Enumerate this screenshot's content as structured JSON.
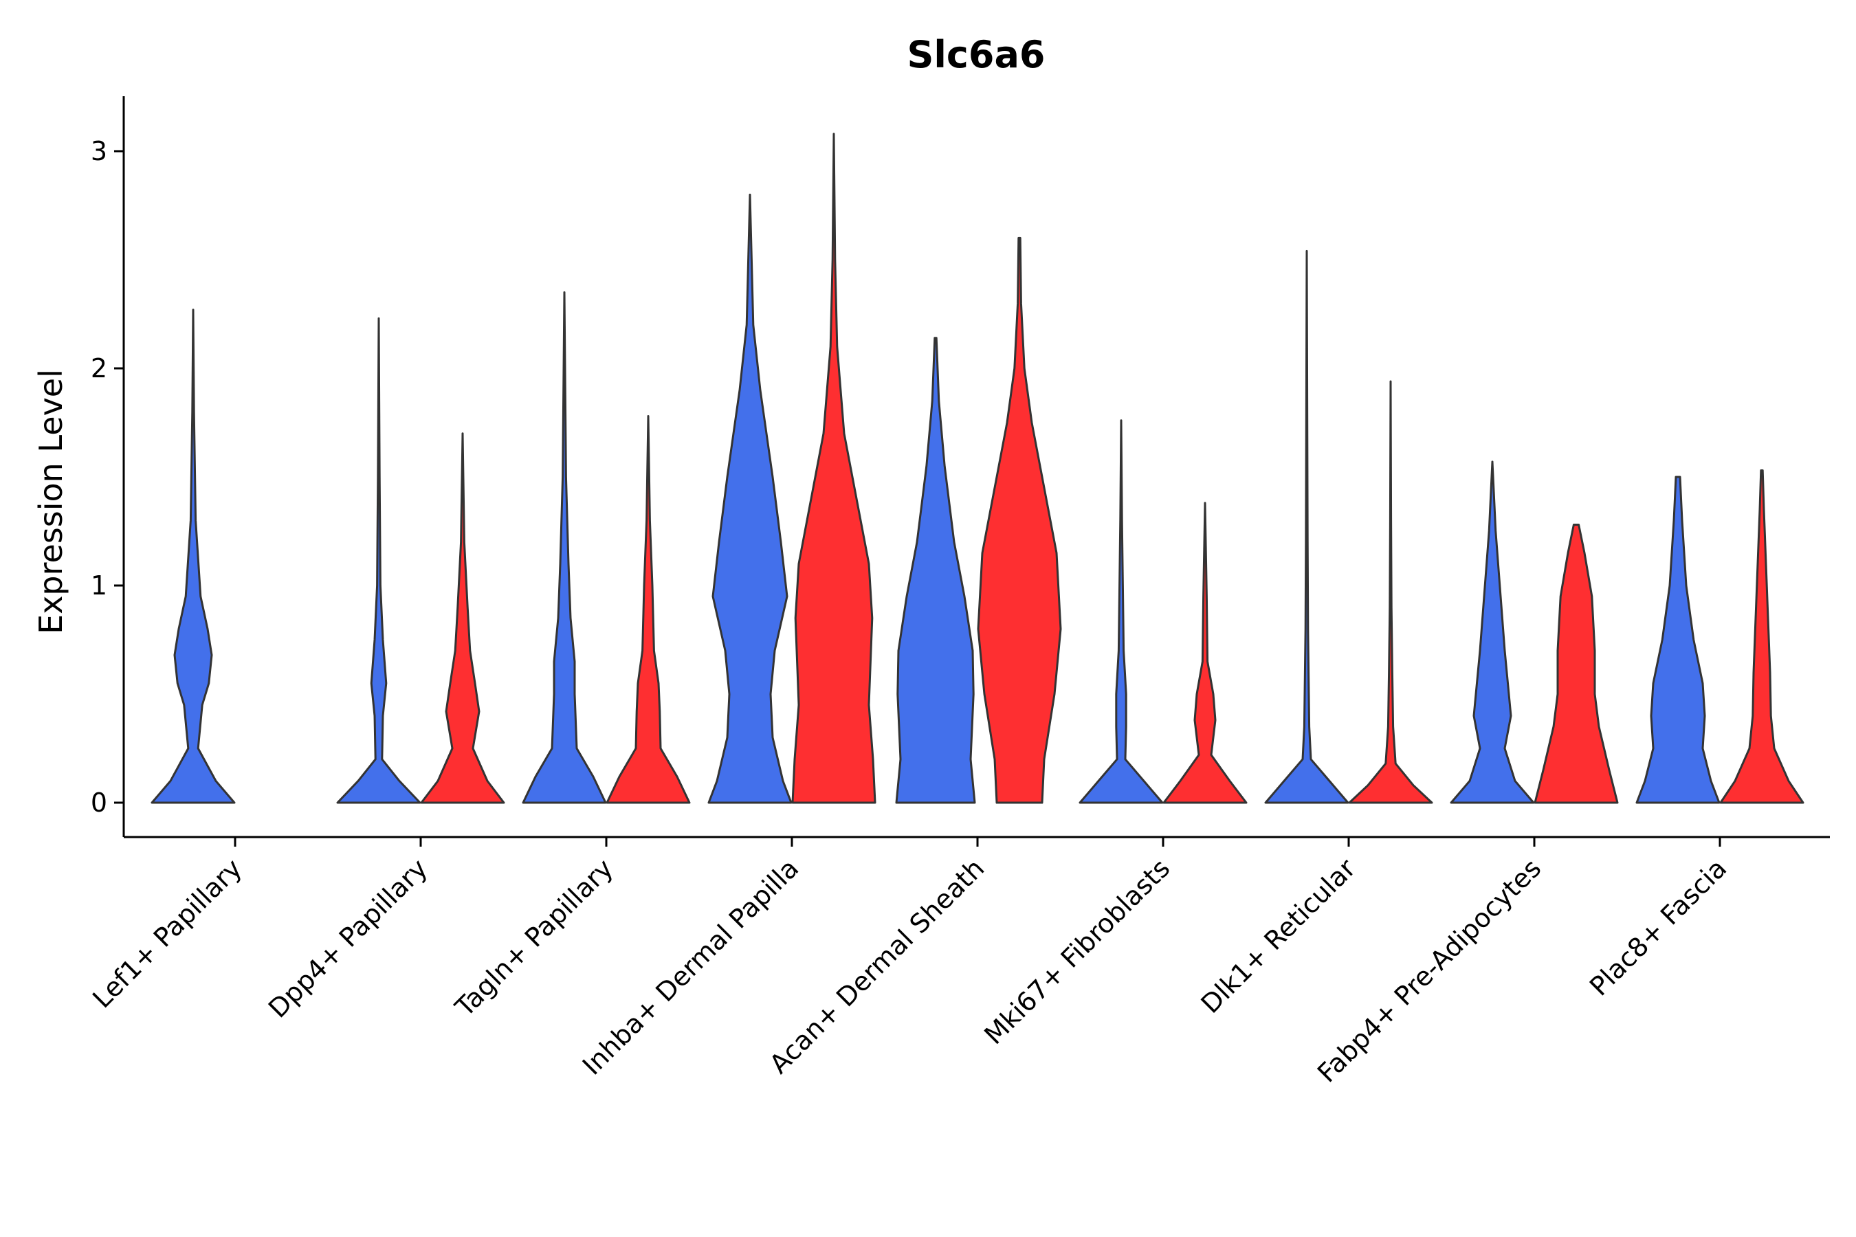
{
  "chart_data": {
    "type": "violin",
    "title": "Slc6a6",
    "xlabel": "",
    "ylabel": "Expression Level",
    "ylim": [
      -0.15,
      3.25
    ],
    "yticks": [
      "0",
      "1",
      "2",
      "3"
    ],
    "grid": false,
    "legend": "none",
    "series_colors": [
      "#4370EB",
      "#FE2F31"
    ],
    "categories": [
      "Lef1+ Papillary",
      "Dpp4+ Papillary",
      "Tagln+ Papillary",
      "Inhba+ Dermal Papilla",
      "Acan+ Dermal Sheath",
      "Mki67+ Fibroblasts",
      "Dlk1+ Reticular",
      "Fabp4+ Pre-Adipocytes",
      "Plac8+ Fascia"
    ],
    "violins": [
      {
        "category": "Lef1+ Papillary",
        "series": 0,
        "max": 2.27,
        "density": [
          [
            0,
            1.0
          ],
          [
            0.1,
            0.55
          ],
          [
            0.25,
            0.12
          ],
          [
            0.45,
            0.22
          ],
          [
            0.55,
            0.38
          ],
          [
            0.68,
            0.45
          ],
          [
            0.8,
            0.35
          ],
          [
            0.95,
            0.18
          ],
          [
            1.3,
            0.06
          ],
          [
            1.8,
            0.02
          ],
          [
            2.27,
            0.0
          ]
        ]
      },
      {
        "category": "Dpp4+ Papillary",
        "series": 0,
        "max": 2.23,
        "density": [
          [
            0,
            1.0
          ],
          [
            0.1,
            0.5
          ],
          [
            0.2,
            0.08
          ],
          [
            0.4,
            0.1
          ],
          [
            0.55,
            0.18
          ],
          [
            0.75,
            0.1
          ],
          [
            1.0,
            0.04
          ],
          [
            1.5,
            0.02
          ],
          [
            2.23,
            0.0
          ]
        ]
      },
      {
        "category": "Dpp4+ Papillary",
        "series": 1,
        "max": 1.7,
        "density": [
          [
            0,
            1.0
          ],
          [
            0.1,
            0.6
          ],
          [
            0.25,
            0.25
          ],
          [
            0.42,
            0.4
          ],
          [
            0.55,
            0.3
          ],
          [
            0.7,
            0.18
          ],
          [
            0.9,
            0.12
          ],
          [
            1.2,
            0.04
          ],
          [
            1.7,
            0.0
          ]
        ]
      },
      {
        "category": "Tagln+ Papillary",
        "series": 0,
        "max": 2.35,
        "density": [
          [
            0,
            1.0
          ],
          [
            0.12,
            0.7
          ],
          [
            0.25,
            0.3
          ],
          [
            0.5,
            0.25
          ],
          [
            0.65,
            0.25
          ],
          [
            0.85,
            0.15
          ],
          [
            1.1,
            0.1
          ],
          [
            1.5,
            0.04
          ],
          [
            2.35,
            0.0
          ]
        ]
      },
      {
        "category": "Tagln+ Papillary",
        "series": 1,
        "max": 1.78,
        "density": [
          [
            0,
            1.0
          ],
          [
            0.12,
            0.7
          ],
          [
            0.25,
            0.3
          ],
          [
            0.42,
            0.28
          ],
          [
            0.55,
            0.25
          ],
          [
            0.7,
            0.14
          ],
          [
            1.0,
            0.1
          ],
          [
            1.3,
            0.04
          ],
          [
            1.78,
            0.0
          ]
        ]
      },
      {
        "category": "Inhba+ Dermal Papilla",
        "series": 0,
        "max": 2.8,
        "density": [
          [
            0,
            1.0
          ],
          [
            0.1,
            0.8
          ],
          [
            0.3,
            0.55
          ],
          [
            0.5,
            0.5
          ],
          [
            0.7,
            0.6
          ],
          [
            0.95,
            0.9
          ],
          [
            1.2,
            0.75
          ],
          [
            1.5,
            0.55
          ],
          [
            1.9,
            0.25
          ],
          [
            2.2,
            0.08
          ],
          [
            2.8,
            0.0
          ]
        ]
      },
      {
        "category": "Inhba+ Dermal Papilla",
        "series": 1,
        "max": 3.08,
        "density": [
          [
            0,
            1.0
          ],
          [
            0.2,
            0.95
          ],
          [
            0.45,
            0.85
          ],
          [
            0.85,
            0.93
          ],
          [
            1.1,
            0.85
          ],
          [
            1.45,
            0.5
          ],
          [
            1.7,
            0.25
          ],
          [
            2.1,
            0.08
          ],
          [
            2.5,
            0.03
          ],
          [
            3.08,
            0.0
          ]
        ]
      },
      {
        "category": "Acan+ Dermal Sheath",
        "series": 0,
        "max": 2.14,
        "density": [
          [
            0,
            0.95
          ],
          [
            0.2,
            0.85
          ],
          [
            0.5,
            0.92
          ],
          [
            0.7,
            0.9
          ],
          [
            0.95,
            0.7
          ],
          [
            1.2,
            0.45
          ],
          [
            1.55,
            0.22
          ],
          [
            1.85,
            0.08
          ],
          [
            2.14,
            0.02
          ]
        ]
      },
      {
        "category": "Acan+ Dermal Sheath",
        "series": 1,
        "max": 2.6,
        "density": [
          [
            0,
            0.55
          ],
          [
            0.2,
            0.6
          ],
          [
            0.5,
            0.85
          ],
          [
            0.8,
            1.0
          ],
          [
            1.15,
            0.9
          ],
          [
            1.45,
            0.6
          ],
          [
            1.75,
            0.3
          ],
          [
            2.0,
            0.12
          ],
          [
            2.3,
            0.04
          ],
          [
            2.6,
            0.02
          ]
        ]
      },
      {
        "category": "Mki67+ Fibroblasts",
        "series": 0,
        "max": 1.76,
        "density": [
          [
            0,
            1.0
          ],
          [
            0.1,
            0.55
          ],
          [
            0.2,
            0.1
          ],
          [
            0.35,
            0.12
          ],
          [
            0.5,
            0.12
          ],
          [
            0.7,
            0.06
          ],
          [
            1.0,
            0.04
          ],
          [
            1.3,
            0.02
          ],
          [
            1.76,
            0.0
          ]
        ]
      },
      {
        "category": "Mki67+ Fibroblasts",
        "series": 1,
        "max": 1.38,
        "density": [
          [
            0,
            1.0
          ],
          [
            0.1,
            0.6
          ],
          [
            0.22,
            0.15
          ],
          [
            0.38,
            0.25
          ],
          [
            0.5,
            0.2
          ],
          [
            0.65,
            0.06
          ],
          [
            0.95,
            0.04
          ],
          [
            1.38,
            0.0
          ]
        ]
      },
      {
        "category": "Dlk1+ Reticular",
        "series": 0,
        "max": 2.54,
        "density": [
          [
            0,
            1.0
          ],
          [
            0.1,
            0.55
          ],
          [
            0.2,
            0.1
          ],
          [
            0.35,
            0.06
          ],
          [
            0.5,
            0.05
          ],
          [
            0.8,
            0.03
          ],
          [
            1.2,
            0.02
          ],
          [
            2.54,
            0.0
          ]
        ]
      },
      {
        "category": "Dlk1+ Reticular",
        "series": 1,
        "max": 1.94,
        "density": [
          [
            0,
            1.0
          ],
          [
            0.08,
            0.55
          ],
          [
            0.18,
            0.12
          ],
          [
            0.35,
            0.06
          ],
          [
            0.6,
            0.04
          ],
          [
            0.9,
            0.02
          ],
          [
            1.3,
            0.01
          ],
          [
            1.94,
            0.0
          ]
        ]
      },
      {
        "category": "Fabp4+ Pre-Adipocytes",
        "series": 0,
        "max": 1.57,
        "density": [
          [
            0,
            1.0
          ],
          [
            0.1,
            0.55
          ],
          [
            0.25,
            0.3
          ],
          [
            0.4,
            0.45
          ],
          [
            0.5,
            0.4
          ],
          [
            0.7,
            0.3
          ],
          [
            0.95,
            0.2
          ],
          [
            1.25,
            0.08
          ],
          [
            1.57,
            0.0
          ]
        ]
      },
      {
        "category": "Fabp4+ Pre-Adipocytes",
        "series": 1,
        "max": 1.28,
        "density": [
          [
            0,
            1.0
          ],
          [
            0.15,
            0.8
          ],
          [
            0.35,
            0.55
          ],
          [
            0.5,
            0.45
          ],
          [
            0.7,
            0.45
          ],
          [
            0.95,
            0.38
          ],
          [
            1.15,
            0.2
          ],
          [
            1.28,
            0.06
          ]
        ]
      },
      {
        "category": "Plac8+ Fascia",
        "series": 0,
        "max": 1.5,
        "density": [
          [
            0,
            1.0
          ],
          [
            0.1,
            0.8
          ],
          [
            0.25,
            0.6
          ],
          [
            0.4,
            0.65
          ],
          [
            0.55,
            0.6
          ],
          [
            0.75,
            0.38
          ],
          [
            1.0,
            0.2
          ],
          [
            1.3,
            0.1
          ],
          [
            1.5,
            0.05
          ]
        ]
      },
      {
        "category": "Plac8+ Fascia",
        "series": 1,
        "max": 1.53,
        "density": [
          [
            0,
            1.0
          ],
          [
            0.1,
            0.65
          ],
          [
            0.25,
            0.3
          ],
          [
            0.4,
            0.22
          ],
          [
            0.6,
            0.2
          ],
          [
            0.85,
            0.15
          ],
          [
            1.1,
            0.1
          ],
          [
            1.35,
            0.05
          ],
          [
            1.53,
            0.02
          ]
        ]
      }
    ]
  }
}
